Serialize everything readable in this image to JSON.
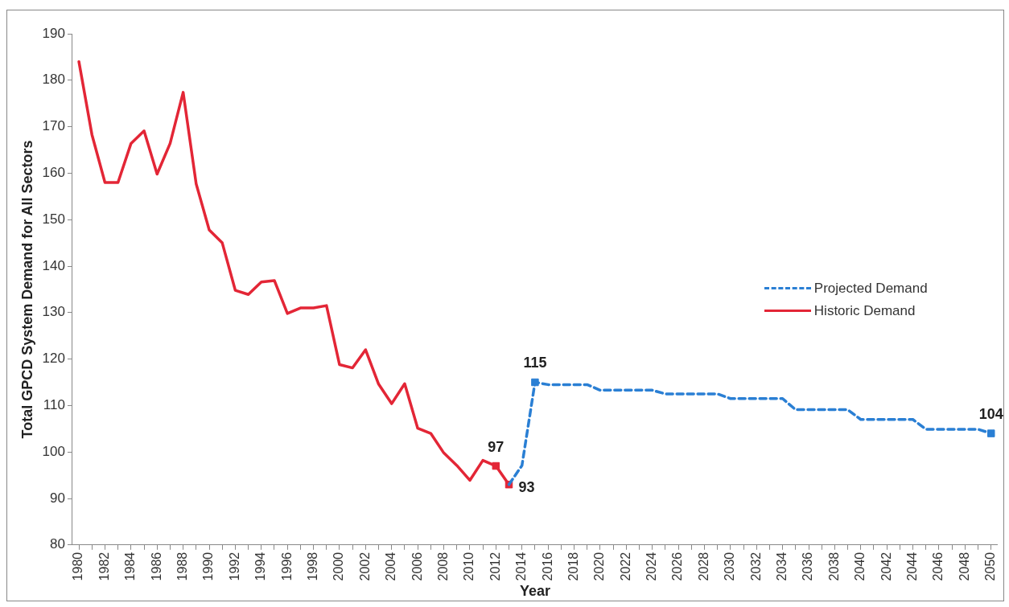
{
  "chart_data": {
    "type": "line",
    "xlabel": "Year",
    "ylabel": "Total GPCD System Demand for All Sectors",
    "x": [
      1980,
      1981,
      1982,
      1983,
      1984,
      1985,
      1986,
      1987,
      1988,
      1989,
      1990,
      1991,
      1992,
      1993,
      1994,
      1995,
      1996,
      1997,
      1998,
      1999,
      2000,
      2001,
      2002,
      2003,
      2004,
      2005,
      2006,
      2007,
      2008,
      2009,
      2010,
      2011,
      2012,
      2013,
      2014,
      2015,
      2016,
      2017,
      2018,
      2019,
      2020,
      2021,
      2022,
      2023,
      2024,
      2025,
      2026,
      2027,
      2028,
      2029,
      2030,
      2031,
      2032,
      2033,
      2034,
      2035,
      2036,
      2037,
      2038,
      2039,
      2040,
      2041,
      2042,
      2043,
      2044,
      2045,
      2046,
      2047,
      2048,
      2049,
      2050
    ],
    "series": [
      {
        "name": "Projected Demand",
        "color": "#2a7fd4",
        "line_style": "dashed",
        "marker": "none",
        "values": [
          null,
          null,
          null,
          null,
          null,
          null,
          null,
          null,
          null,
          null,
          null,
          null,
          null,
          null,
          null,
          null,
          null,
          null,
          null,
          null,
          null,
          null,
          null,
          null,
          null,
          null,
          null,
          null,
          null,
          null,
          null,
          null,
          null,
          93,
          97.1,
          115,
          114.5,
          114.5,
          114.5,
          114.5,
          113.3,
          113.3,
          113.3,
          113.3,
          113.3,
          112.5,
          112.5,
          112.5,
          112.5,
          112.5,
          111.5,
          111.5,
          111.5,
          111.5,
          111.5,
          109.1,
          109.1,
          109.1,
          109.1,
          109.1,
          107,
          107,
          107,
          107,
          107,
          104.9,
          104.9,
          104.9,
          104.9,
          104.9,
          104
        ]
      },
      {
        "name": "Historic Demand",
        "color": "#e32636",
        "line_style": "solid",
        "marker": "none",
        "values": [
          184,
          168.3,
          158,
          158,
          166.4,
          169.1,
          159.8,
          166.4,
          177.4,
          157.7,
          147.8,
          145,
          134.8,
          133.9,
          136.6,
          136.9,
          129.8,
          131,
          131,
          131.5,
          118.8,
          118.1,
          122,
          114.6,
          110.4,
          114.7,
          105.1,
          104,
          99.8,
          97.1,
          93.9,
          98.2,
          97,
          93,
          null,
          null,
          null,
          null,
          null,
          null,
          null,
          null,
          null,
          null,
          null,
          null,
          null,
          null,
          null,
          null,
          null,
          null,
          null,
          null,
          null,
          null,
          null,
          null,
          null,
          null,
          null,
          null,
          null,
          null,
          null,
          null,
          null,
          null,
          null,
          null,
          null
        ]
      },
      {
        "type": "scatter",
        "marker": "square",
        "x": [
          2012,
          2013,
          2015,
          2050
        ],
        "values": [
          97,
          93,
          115,
          104
        ],
        "colors": [
          "#e32636",
          "#e32636",
          "#2a7fd4",
          "#2a7fd4"
        ],
        "value_labels": [
          "97",
          "93",
          "115",
          "104"
        ]
      }
    ],
    "xlim": [
      1979.5,
      2050.5
    ],
    "xticks": [
      1980,
      {
        "value": 1981,
        "label": null
      },
      1982,
      {
        "value": 1983,
        "label": null
      },
      1984,
      {
        "value": 1985,
        "label": null
      },
      1986,
      {
        "value": 1987,
        "label": null
      },
      1988,
      {
        "value": 1989,
        "label": null
      },
      1990,
      {
        "value": 1991,
        "label": null
      },
      1992,
      {
        "value": 1993,
        "label": null
      },
      1994,
      {
        "value": 1995,
        "label": null
      },
      1996,
      {
        "value": 1997,
        "label": null
      },
      1998,
      {
        "value": 1999,
        "label": null
      },
      2000,
      {
        "value": 2001,
        "label": null
      },
      2002,
      {
        "value": 2003,
        "label": null
      },
      2004,
      {
        "value": 2005,
        "label": null
      },
      2006,
      {
        "value": 2007,
        "label": null
      },
      2008,
      {
        "value": 2009,
        "label": null
      },
      2010,
      {
        "value": 2011,
        "label": null
      },
      2012,
      {
        "value": 2013,
        "label": null
      },
      2014,
      {
        "value": 2015,
        "label": null
      },
      2016,
      {
        "value": 2017,
        "label": null
      },
      2018,
      {
        "value": 2019,
        "label": null
      },
      2020,
      {
        "value": 2021,
        "label": null
      },
      2022,
      {
        "value": 2023,
        "label": null
      },
      2024,
      {
        "value": 2025,
        "label": null
      },
      2026,
      {
        "value": 2027,
        "label": null
      },
      2028,
      {
        "value": 2029,
        "label": null
      },
      2030,
      {
        "value": 2031,
        "label": null
      },
      2032,
      {
        "value": 2033,
        "label": null
      },
      2034,
      {
        "value": 2035,
        "label": null
      },
      2036,
      {
        "value": 2037,
        "label": null
      },
      2038,
      {
        "value": 2039,
        "label": null
      },
      2040,
      {
        "value": 2041,
        "label": null
      },
      2042,
      {
        "value": 2043,
        "label": null
      },
      2044,
      {
        "value": 2045,
        "label": null
      },
      2046,
      {
        "value": 2047,
        "label": null
      },
      2048,
      {
        "value": 2049,
        "label": null
      },
      2050
    ],
    "ylim": [
      80,
      190
    ],
    "yticks": [
      80,
      90,
      100,
      110,
      120,
      130,
      140,
      150,
      160,
      170,
      180,
      190
    ],
    "grid": false,
    "legend": "right"
  }
}
